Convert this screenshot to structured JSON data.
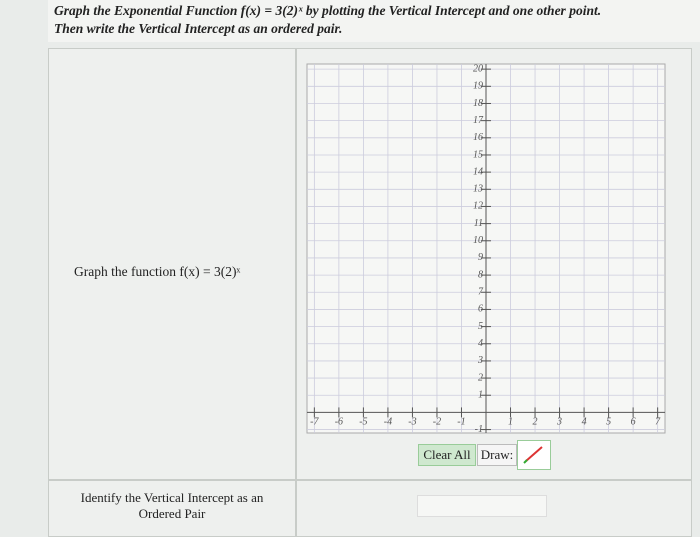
{
  "header": {
    "line1": "Graph the Exponential Function f(x) = 3(2)ˣ by plotting the Vertical Intercept and one other point.",
    "line2": "Then write the Vertical Intercept as an ordered pair."
  },
  "prompt": "Graph the function f(x) = 3(2)ˣ",
  "graph": {
    "xlim": [
      -7.3,
      7.3
    ],
    "ylim": [
      -1.2,
      20.3
    ],
    "xticks": [
      -7,
      -6,
      -5,
      -4,
      -3,
      -2,
      -1,
      1,
      2,
      3,
      4,
      5,
      6,
      7
    ],
    "yticks": [
      -1,
      1,
      2,
      3,
      4,
      5,
      6,
      7,
      8,
      9,
      10,
      11,
      12,
      13,
      14,
      15,
      16,
      17,
      18,
      19,
      20
    ]
  },
  "controls": {
    "clear": "Clear All",
    "draw": "Draw:"
  },
  "answer": {
    "label_line1": "Identify the Vertical Intercept as an",
    "label_line2": "Ordered Pair"
  }
}
